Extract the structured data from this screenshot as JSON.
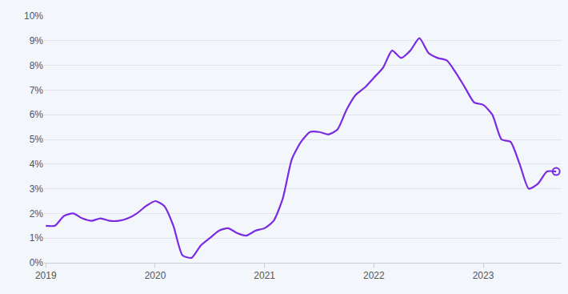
{
  "chart_data": {
    "type": "line",
    "categories": [
      "2019",
      null,
      null,
      null,
      null,
      null,
      null,
      null,
      null,
      null,
      null,
      null,
      "2020",
      null,
      null,
      null,
      null,
      null,
      null,
      null,
      null,
      null,
      null,
      null,
      "2021",
      null,
      null,
      null,
      null,
      null,
      null,
      null,
      null,
      null,
      null,
      null,
      "2022",
      null,
      null,
      null,
      null,
      null,
      null,
      null,
      null,
      null,
      null,
      null,
      "2023",
      null,
      null,
      null,
      null,
      null,
      null,
      null,
      null
    ],
    "values": [
      1.5,
      1.5,
      1.9,
      2.0,
      1.8,
      1.7,
      1.8,
      1.7,
      1.7,
      1.8,
      2.0,
      2.3,
      2.5,
      2.3,
      1.5,
      0.3,
      0.2,
      0.7,
      1.0,
      1.3,
      1.4,
      1.2,
      1.1,
      1.3,
      1.4,
      1.7,
      2.6,
      4.2,
      4.9,
      5.3,
      5.3,
      5.2,
      5.4,
      6.2,
      6.8,
      7.1,
      7.5,
      7.9,
      8.6,
      8.3,
      8.6,
      9.1,
      8.5,
      8.3,
      8.2,
      7.7,
      7.1,
      6.5,
      6.4,
      6.0,
      5.0,
      4.9,
      4.0,
      3.0,
      3.2,
      3.7,
      3.7
    ],
    "color": "#7a2be2",
    "marker": "circle-open",
    "ylim": [
      0,
      10
    ],
    "yticks": [
      {
        "value": 0,
        "label": "0%"
      },
      {
        "value": 1,
        "label": "1%"
      },
      {
        "value": 2,
        "label": "2%"
      },
      {
        "value": 3,
        "label": "3%"
      },
      {
        "value": 4,
        "label": "4%"
      },
      {
        "value": 5,
        "label": "5%"
      },
      {
        "value": 6,
        "label": "6%"
      },
      {
        "value": 7,
        "label": "7%"
      },
      {
        "value": 8,
        "label": "8%"
      },
      {
        "value": 9,
        "label": "9%"
      },
      {
        "value": 10,
        "label": "10%"
      }
    ],
    "grid": true
  }
}
